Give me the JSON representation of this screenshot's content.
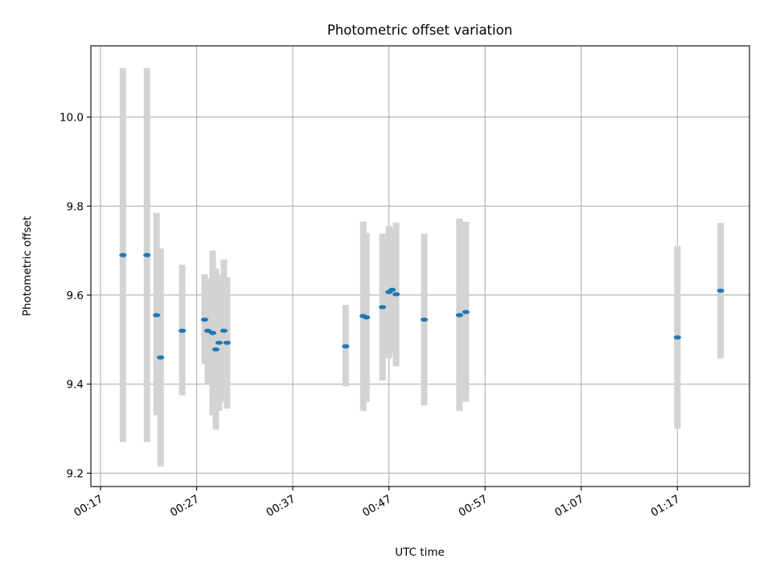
{
  "chart_data": {
    "type": "scatter",
    "title": "Photometric offset variation",
    "xlabel": "UTC time",
    "ylabel": "Photometric offset",
    "x_axis_type": "time",
    "xlim": [
      "00:16:00",
      "01:24:30"
    ],
    "ylim": [
      9.17,
      10.16
    ],
    "x_ticks": [
      "00:17",
      "00:27",
      "00:37",
      "00:47",
      "00:57",
      "01:07",
      "01:17"
    ],
    "y_ticks": [
      9.2,
      9.4,
      9.6,
      9.8,
      10.0
    ],
    "y_tick_labels": [
      "9.2",
      "9.4",
      "9.6",
      "9.8",
      "10.0"
    ],
    "grid": true,
    "legend": "none",
    "marker_color": "#1f77b4",
    "errorbar_color": "#d3d3d3",
    "series": [
      {
        "points": [
          {
            "time": "00:19:20",
            "y": 9.69,
            "err_low": 9.27,
            "err_high": 10.11
          },
          {
            "time": "00:21:50",
            "y": 9.69,
            "err_low": 9.27,
            "err_high": 10.11
          },
          {
            "time": "00:22:50",
            "y": 9.555,
            "err_low": 9.33,
            "err_high": 9.785
          },
          {
            "time": "00:23:15",
            "y": 9.46,
            "err_low": 9.215,
            "err_high": 9.705
          },
          {
            "time": "00:25:30",
            "y": 9.52,
            "err_low": 9.375,
            "err_high": 9.668
          },
          {
            "time": "00:27:50",
            "y": 9.545,
            "err_low": 9.445,
            "err_high": 9.647
          },
          {
            "time": "00:28:10",
            "y": 9.52,
            "err_low": 9.4,
            "err_high": 9.638
          },
          {
            "time": "00:28:40",
            "y": 9.515,
            "err_low": 9.33,
            "err_high": 9.7
          },
          {
            "time": "00:29:00",
            "y": 9.478,
            "err_low": 9.298,
            "err_high": 9.66
          },
          {
            "time": "00:29:20",
            "y": 9.493,
            "err_low": 9.34,
            "err_high": 9.645
          },
          {
            "time": "00:29:50",
            "y": 9.52,
            "err_low": 9.36,
            "err_high": 9.68
          },
          {
            "time": "00:30:10",
            "y": 9.493,
            "err_low": 9.345,
            "err_high": 9.64
          },
          {
            "time": "00:42:30",
            "y": 9.485,
            "err_low": 9.395,
            "err_high": 9.578
          },
          {
            "time": "00:44:20",
            "y": 9.553,
            "err_low": 9.34,
            "err_high": 9.765
          },
          {
            "time": "00:44:40",
            "y": 9.55,
            "err_low": 9.36,
            "err_high": 9.74
          },
          {
            "time": "00:46:20",
            "y": 9.573,
            "err_low": 9.408,
            "err_high": 9.738
          },
          {
            "time": "00:47:00",
            "y": 9.607,
            "err_low": 9.458,
            "err_high": 9.755
          },
          {
            "time": "00:47:20",
            "y": 9.612,
            "err_low": 9.47,
            "err_high": 9.75
          },
          {
            "time": "00:47:45",
            "y": 9.602,
            "err_low": 9.44,
            "err_high": 9.763
          },
          {
            "time": "00:50:40",
            "y": 9.545,
            "err_low": 9.352,
            "err_high": 9.738
          },
          {
            "time": "00:54:20",
            "y": 9.555,
            "err_low": 9.34,
            "err_high": 9.772
          },
          {
            "time": "00:55:00",
            "y": 9.562,
            "err_low": 9.36,
            "err_high": 9.765
          },
          {
            "time": "01:17:00",
            "y": 9.505,
            "err_low": 9.3,
            "err_high": 9.71
          },
          {
            "time": "01:21:30",
            "y": 9.61,
            "err_low": 9.458,
            "err_high": 9.762
          }
        ]
      }
    ]
  }
}
